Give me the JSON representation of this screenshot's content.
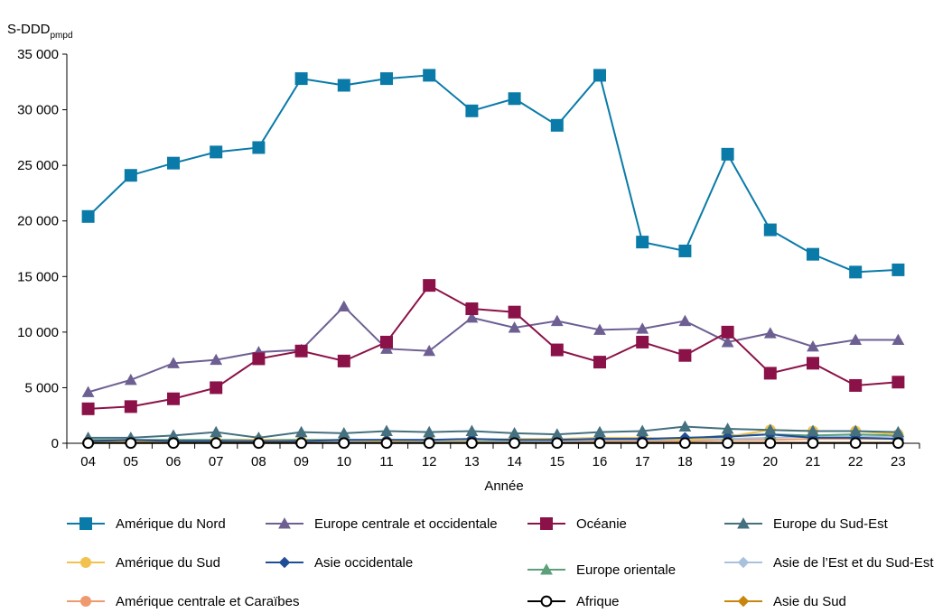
{
  "chart_data": {
    "type": "line",
    "ylabel_main": "S-DDD",
    "ylabel_sub": "pmpd",
    "xlabel": "Année",
    "ylim": [
      0,
      35000
    ],
    "y_ticks": [
      0,
      5000,
      10000,
      15000,
      20000,
      25000,
      30000,
      35000
    ],
    "y_tick_labels": [
      "0",
      "5 000",
      "10 000",
      "15 000",
      "20 000",
      "25 000",
      "30 000",
      "35 000"
    ],
    "grid": false,
    "legend_position": "bottom",
    "categories": [
      "04",
      "05",
      "06",
      "07",
      "08",
      "09",
      "10",
      "11",
      "12",
      "13",
      "14",
      "15",
      "16",
      "17",
      "18",
      "19",
      "20",
      "21",
      "22",
      "23"
    ],
    "series": [
      {
        "name": "Amérique du Nord",
        "color": "#0a7aa8",
        "marker": "square",
        "values": [
          20400,
          24100,
          25200,
          26200,
          26600,
          32800,
          32200,
          32800,
          33100,
          29900,
          31000,
          28600,
          33100,
          18100,
          17300,
          26000,
          19200,
          17000,
          15400,
          15600
        ]
      },
      {
        "name": "Europe centrale et occidentale",
        "color": "#6e5f93",
        "marker": "triangle",
        "values": [
          4600,
          5700,
          7200,
          7500,
          8200,
          8400,
          12300,
          8500,
          8300,
          11300,
          10400,
          11000,
          10200,
          10300,
          11000,
          9100,
          9900,
          8700,
          9300,
          9300
        ]
      },
      {
        "name": "Océanie",
        "color": "#8b1248",
        "marker": "square",
        "values": [
          3100,
          3300,
          4000,
          5000,
          7600,
          8300,
          7400,
          9100,
          14200,
          12100,
          11800,
          8400,
          7300,
          9100,
          7900,
          10000,
          6300,
          7200,
          5200,
          5500
        ]
      },
      {
        "name": "Europe du Sud-Est",
        "color": "#44707f",
        "marker": "triangle",
        "values": [
          500,
          500,
          700,
          1000,
          500,
          1000,
          900,
          1100,
          1000,
          1100,
          900,
          800,
          1000,
          1100,
          1500,
          1300,
          1200,
          1100,
          1100,
          1000
        ]
      },
      {
        "name": "Amérique du Sud",
        "color": "#f2c14e",
        "marker": "circle",
        "values": [
          100,
          200,
          100,
          200,
          300,
          200,
          300,
          200,
          300,
          300,
          400,
          400,
          500,
          500,
          300,
          600,
          1200,
          1100,
          1100,
          800
        ]
      },
      {
        "name": "Asie occidentale",
        "color": "#1f4e96",
        "marker": "diamond",
        "values": [
          200,
          300,
          200,
          200,
          200,
          200,
          300,
          300,
          300,
          400,
          300,
          300,
          400,
          400,
          500,
          600,
          800,
          500,
          500,
          400
        ]
      },
      {
        "name": "Europe orientale",
        "color": "#5ba07a",
        "marker": "triangle",
        "values": [
          300,
          300,
          300,
          300,
          300,
          300,
          300,
          300,
          300,
          300,
          300,
          400,
          400,
          400,
          400,
          700,
          800,
          700,
          800,
          700
        ]
      },
      {
        "name": "Asie de l’Est et du Sud-Est",
        "color": "#a9c1dd",
        "marker": "diamond",
        "values": [
          100,
          100,
          100,
          100,
          100,
          200,
          200,
          200,
          200,
          200,
          200,
          200,
          300,
          300,
          300,
          400,
          500,
          600,
          600,
          600
        ]
      },
      {
        "name": "Amérique centrale et Caraïbes",
        "color": "#ef9a6e",
        "marker": "circle",
        "values": [
          100,
          100,
          100,
          100,
          100,
          100,
          100,
          100,
          100,
          100,
          100,
          100,
          200,
          200,
          200,
          300,
          300,
          400,
          400,
          400
        ]
      },
      {
        "name": "Afrique",
        "color": "#000000",
        "marker": "circle-open",
        "values": [
          20,
          20,
          20,
          20,
          20,
          20,
          20,
          20,
          20,
          20,
          20,
          20,
          20,
          20,
          20,
          20,
          20,
          20,
          20,
          20
        ]
      },
      {
        "name": "Asie du Sud",
        "color": "#c8860e",
        "marker": "diamond",
        "values": [
          50,
          50,
          50,
          50,
          50,
          50,
          50,
          50,
          50,
          50,
          50,
          50,
          50,
          50,
          50,
          50,
          50,
          50,
          50,
          50
        ]
      }
    ],
    "series_draw_order": [
      8,
      7,
      6,
      4,
      5,
      10,
      3,
      0,
      1,
      2,
      9
    ]
  }
}
